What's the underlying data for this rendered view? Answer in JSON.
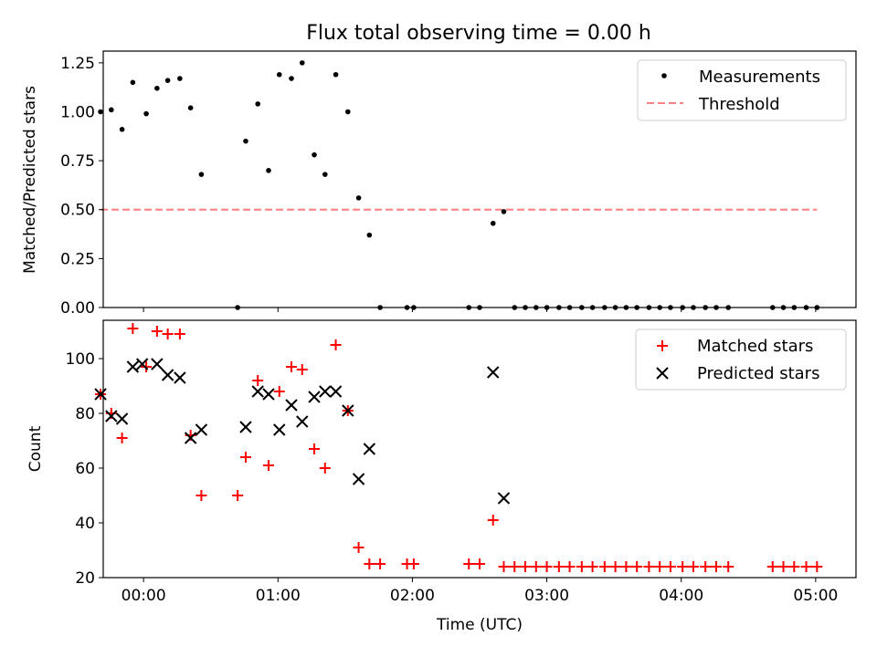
{
  "chart_data": [
    {
      "type": "scatter",
      "title": "Flux total observing time = 0.00 h",
      "xlabel": "",
      "ylabel": "Matched/Predicted stars",
      "xlim": [
        -0.3,
        5.3
      ],
      "ylim": [
        0,
        1.31
      ],
      "yticks": [
        "0.00",
        "0.25",
        "0.50",
        "0.75",
        "1.00",
        "1.25"
      ],
      "ytick_values": [
        0,
        0.25,
        0.5,
        0.75,
        1.0,
        1.25
      ],
      "legend_position": "top-right",
      "series": [
        {
          "name": "Measurements",
          "marker": "dot",
          "color": "#000000",
          "points": [
            [
              -0.32,
              1.0
            ],
            [
              -0.24,
              1.01
            ],
            [
              -0.16,
              0.91
            ],
            [
              -0.08,
              1.15
            ],
            [
              0.02,
              0.99
            ],
            [
              0.1,
              1.12
            ],
            [
              0.18,
              1.16
            ],
            [
              0.27,
              1.17
            ],
            [
              0.35,
              1.02
            ],
            [
              0.43,
              0.68
            ],
            [
              0.7,
              0.0
            ],
            [
              0.76,
              0.85
            ],
            [
              0.85,
              1.04
            ],
            [
              0.93,
              0.7
            ],
            [
              1.01,
              1.19
            ],
            [
              1.1,
              1.17
            ],
            [
              1.18,
              1.25
            ],
            [
              1.27,
              0.78
            ],
            [
              1.35,
              0.68
            ],
            [
              1.43,
              1.19
            ],
            [
              1.52,
              1.0
            ],
            [
              1.6,
              0.56
            ],
            [
              1.68,
              0.37
            ],
            [
              1.76,
              0.0
            ],
            [
              1.96,
              0.0
            ],
            [
              2.01,
              0.0
            ],
            [
              2.42,
              0.0
            ],
            [
              2.5,
              0.0
            ],
            [
              2.6,
              0.43
            ],
            [
              2.68,
              0.49
            ],
            [
              2.76,
              0.0
            ],
            [
              2.84,
              0.0
            ],
            [
              2.92,
              0.0
            ],
            [
              3.0,
              0.0
            ],
            [
              3.09,
              0.0
            ],
            [
              3.17,
              0.0
            ],
            [
              3.26,
              0.0
            ],
            [
              3.34,
              0.0
            ],
            [
              3.43,
              0.0
            ],
            [
              3.51,
              0.0
            ],
            [
              3.59,
              0.0
            ],
            [
              3.67,
              0.0
            ],
            [
              3.76,
              0.0
            ],
            [
              3.84,
              0.0
            ],
            [
              3.92,
              0.0
            ],
            [
              4.01,
              0.0
            ],
            [
              4.09,
              0.0
            ],
            [
              4.18,
              0.0
            ],
            [
              4.26,
              0.0
            ],
            [
              4.35,
              0.0
            ],
            [
              4.68,
              0.0
            ],
            [
              4.76,
              0.0
            ],
            [
              4.84,
              0.0
            ],
            [
              4.93,
              0.0
            ],
            [
              5.01,
              0.0
            ]
          ]
        },
        {
          "name": "Threshold",
          "marker": "dashed-line",
          "color": "#ff7f7f",
          "points": [
            [
              -0.32,
              0.5
            ],
            [
              5.01,
              0.5
            ]
          ]
        }
      ]
    },
    {
      "type": "scatter",
      "title": "",
      "xlabel": "Time (UTC)",
      "ylabel": "Count",
      "xlim": [
        -0.3,
        5.3
      ],
      "ylim": [
        20,
        114
      ],
      "yticks": [
        "20",
        "40",
        "60",
        "80",
        "100"
      ],
      "ytick_values": [
        20,
        40,
        60,
        80,
        100
      ],
      "xticks": [
        "00:00",
        "01:00",
        "02:00",
        "03:00",
        "04:00",
        "05:00"
      ],
      "xtick_values": [
        0,
        1,
        2,
        3,
        4,
        5
      ],
      "legend_position": "top-right",
      "series": [
        {
          "name": "Matched stars",
          "marker": "plus",
          "color": "#ff0000",
          "points": [
            [
              -0.32,
              87
            ],
            [
              -0.24,
              80
            ],
            [
              -0.16,
              71
            ],
            [
              -0.08,
              111
            ],
            [
              0.02,
              97
            ],
            [
              0.1,
              110
            ],
            [
              0.18,
              109
            ],
            [
              0.27,
              109
            ],
            [
              0.35,
              72
            ],
            [
              0.43,
              50
            ],
            [
              0.7,
              50
            ],
            [
              0.76,
              64
            ],
            [
              0.85,
              92
            ],
            [
              0.93,
              61
            ],
            [
              1.01,
              88
            ],
            [
              1.1,
              97
            ],
            [
              1.18,
              96
            ],
            [
              1.27,
              67
            ],
            [
              1.35,
              60
            ],
            [
              1.43,
              105
            ],
            [
              1.52,
              81
            ],
            [
              1.6,
              31
            ],
            [
              1.68,
              25
            ],
            [
              1.76,
              25
            ],
            [
              1.96,
              25
            ],
            [
              2.01,
              25
            ],
            [
              2.42,
              25
            ],
            [
              2.5,
              25
            ],
            [
              2.6,
              41
            ],
            [
              2.68,
              24
            ],
            [
              2.76,
              24
            ],
            [
              2.84,
              24
            ],
            [
              2.92,
              24
            ],
            [
              3.0,
              24
            ],
            [
              3.09,
              24
            ],
            [
              3.17,
              24
            ],
            [
              3.26,
              24
            ],
            [
              3.34,
              24
            ],
            [
              3.43,
              24
            ],
            [
              3.51,
              24
            ],
            [
              3.59,
              24
            ],
            [
              3.67,
              24
            ],
            [
              3.76,
              24
            ],
            [
              3.84,
              24
            ],
            [
              3.92,
              24
            ],
            [
              4.01,
              24
            ],
            [
              4.09,
              24
            ],
            [
              4.18,
              24
            ],
            [
              4.26,
              24
            ],
            [
              4.35,
              24
            ],
            [
              4.68,
              24
            ],
            [
              4.76,
              24
            ],
            [
              4.84,
              24
            ],
            [
              4.93,
              24
            ],
            [
              5.01,
              24
            ]
          ]
        },
        {
          "name": "Predicted stars",
          "marker": "x",
          "color": "#000000",
          "points": [
            [
              -0.32,
              87
            ],
            [
              -0.24,
              79
            ],
            [
              -0.16,
              78
            ],
            [
              -0.08,
              97
            ],
            [
              -0.01,
              98
            ],
            [
              0.1,
              98
            ],
            [
              0.18,
              94
            ],
            [
              0.27,
              93
            ],
            [
              0.35,
              71
            ],
            [
              0.43,
              74
            ],
            [
              0.76,
              75
            ],
            [
              0.85,
              88
            ],
            [
              0.93,
              87
            ],
            [
              1.01,
              74
            ],
            [
              1.1,
              83
            ],
            [
              1.18,
              77
            ],
            [
              1.27,
              86
            ],
            [
              1.35,
              88
            ],
            [
              1.43,
              88
            ],
            [
              1.52,
              81
            ],
            [
              1.6,
              56
            ],
            [
              1.68,
              67
            ],
            [
              2.6,
              95
            ],
            [
              2.68,
              49
            ]
          ]
        }
      ]
    }
  ]
}
